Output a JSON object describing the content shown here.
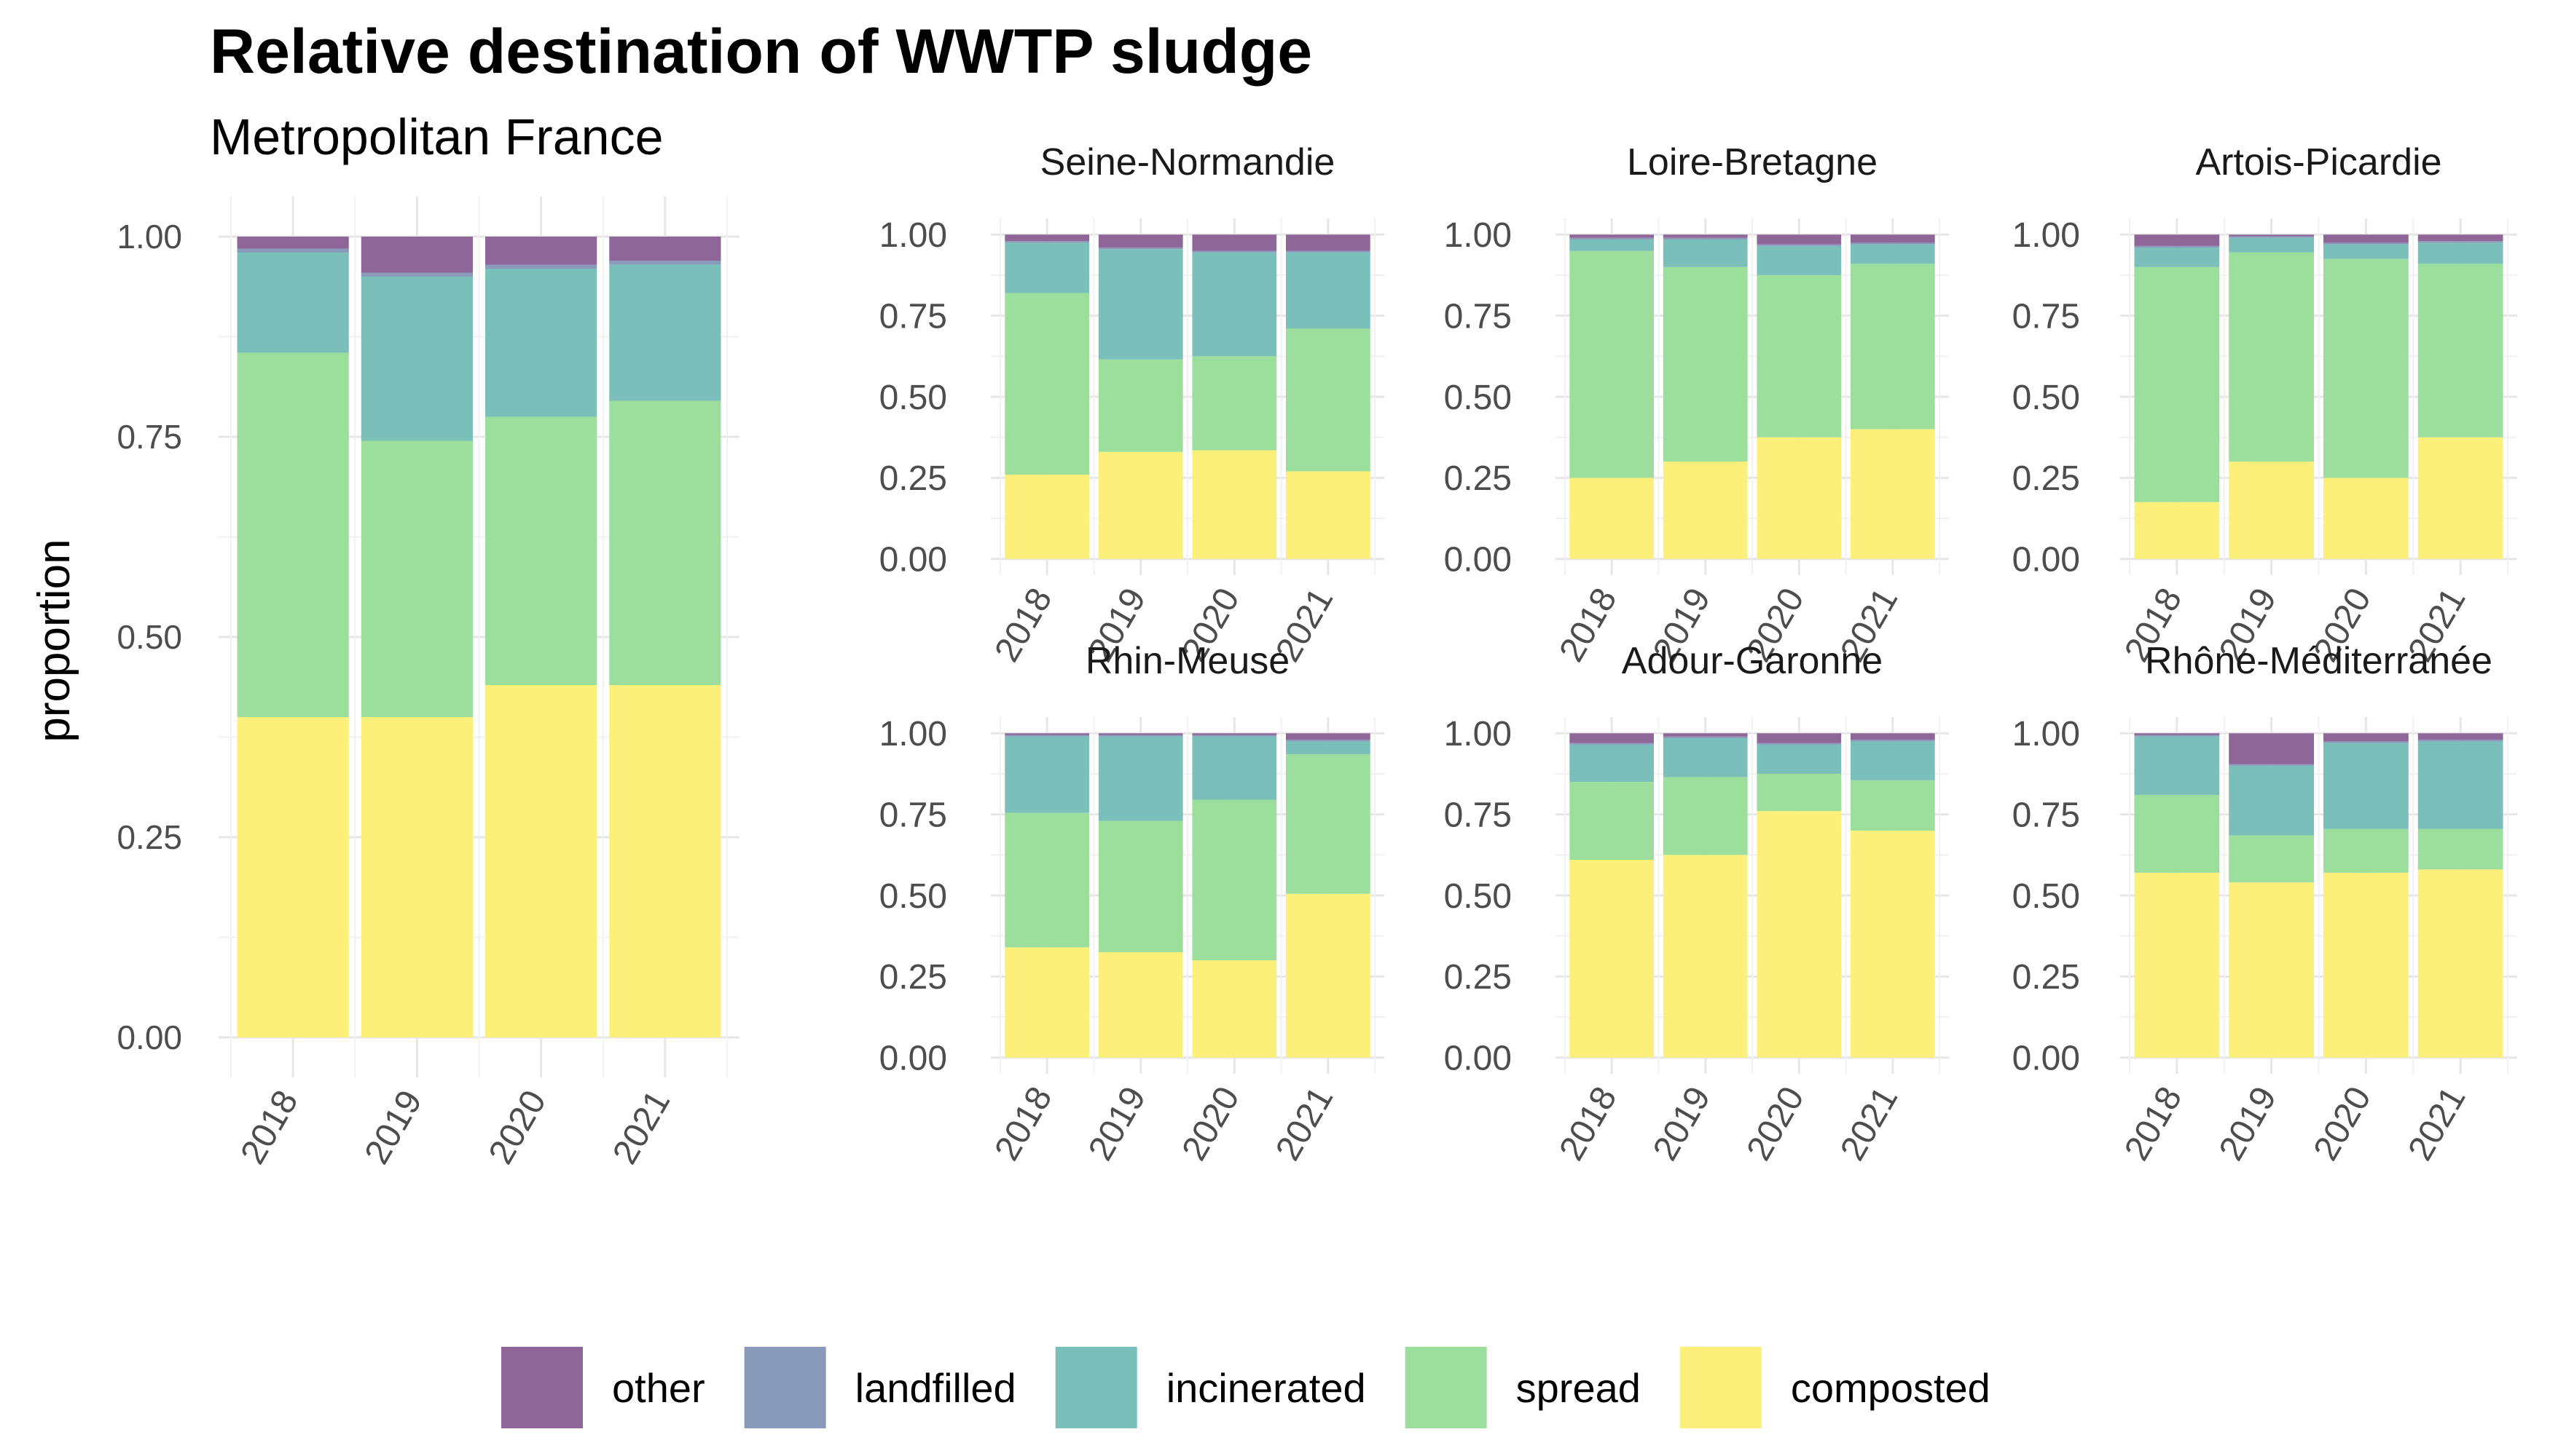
{
  "title": "Relative destination of WWTP sludge",
  "subtitle": "Metropolitan France",
  "ylabel": "proportion",
  "colors": {
    "other": "#8f6698",
    "landfilled": "#8a9abb",
    "incinerated": "#7bbfba",
    "spread": "#9cde9c",
    "composted": "#fdf07a"
  },
  "chart_data": [
    {
      "type": "bar",
      "stacked": true,
      "panel": "main",
      "title": "",
      "categories": [
        "2018",
        "2019",
        "2020",
        "2021"
      ],
      "ylim": [
        0,
        1
      ],
      "yticks": [
        "0.00",
        "0.25",
        "0.50",
        "0.75",
        "1.00"
      ],
      "series": [
        {
          "name": "composted",
          "values": [
            0.4,
            0.4,
            0.44,
            0.44
          ]
        },
        {
          "name": "spread",
          "values": [
            0.455,
            0.345,
            0.335,
            0.355
          ]
        },
        {
          "name": "incinerated",
          "values": [
            0.125,
            0.205,
            0.185,
            0.17
          ]
        },
        {
          "name": "landfilled",
          "values": [
            0.005,
            0.005,
            0.005,
            0.005
          ]
        },
        {
          "name": "other",
          "values": [
            0.015,
            0.045,
            0.035,
            0.03
          ]
        }
      ]
    },
    {
      "type": "bar",
      "stacked": true,
      "panel": "facet",
      "title": "Seine-Normandie",
      "categories": [
        "2018",
        "2019",
        "2020",
        "2021"
      ],
      "ylim": [
        0,
        1
      ],
      "yticks": [
        "0.00",
        "0.25",
        "0.50",
        "0.75",
        "1.00"
      ],
      "series": [
        {
          "name": "composted",
          "values": [
            0.26,
            0.33,
            0.335,
            0.27
          ]
        },
        {
          "name": "spread",
          "values": [
            0.56,
            0.285,
            0.29,
            0.44
          ]
        },
        {
          "name": "incinerated",
          "values": [
            0.155,
            0.34,
            0.32,
            0.235
          ]
        },
        {
          "name": "landfilled",
          "values": [
            0.005,
            0.005,
            0.005,
            0.005
          ]
        },
        {
          "name": "other",
          "values": [
            0.02,
            0.04,
            0.05,
            0.05
          ]
        }
      ]
    },
    {
      "type": "bar",
      "stacked": true,
      "panel": "facet",
      "title": "Loire-Bretagne",
      "categories": [
        "2018",
        "2019",
        "2020",
        "2021"
      ],
      "ylim": [
        0,
        1
      ],
      "yticks": [
        "0.00",
        "0.25",
        "0.50",
        "0.75",
        "1.00"
      ],
      "series": [
        {
          "name": "composted",
          "values": [
            0.25,
            0.3,
            0.375,
            0.4
          ]
        },
        {
          "name": "spread",
          "values": [
            0.7,
            0.6,
            0.5,
            0.51
          ]
        },
        {
          "name": "incinerated",
          "values": [
            0.035,
            0.085,
            0.09,
            0.06
          ]
        },
        {
          "name": "landfilled",
          "values": [
            0.005,
            0.005,
            0.005,
            0.005
          ]
        },
        {
          "name": "other",
          "values": [
            0.01,
            0.01,
            0.03,
            0.025
          ]
        }
      ]
    },
    {
      "type": "bar",
      "stacked": true,
      "panel": "facet",
      "title": "Artois-Picardie",
      "categories": [
        "2018",
        "2019",
        "2020",
        "2021"
      ],
      "ylim": [
        0,
        1
      ],
      "yticks": [
        "0.00",
        "0.25",
        "0.50",
        "0.75",
        "1.00"
      ],
      "series": [
        {
          "name": "composted",
          "values": [
            0.175,
            0.3,
            0.25,
            0.375
          ]
        },
        {
          "name": "spread",
          "values": [
            0.725,
            0.645,
            0.675,
            0.535
          ]
        },
        {
          "name": "incinerated",
          "values": [
            0.06,
            0.045,
            0.045,
            0.065
          ]
        },
        {
          "name": "landfilled",
          "values": [
            0.005,
            0.005,
            0.005,
            0.005
          ]
        },
        {
          "name": "other",
          "values": [
            0.035,
            0.005,
            0.025,
            0.02
          ]
        }
      ]
    },
    {
      "type": "bar",
      "stacked": true,
      "panel": "facet",
      "title": "Rhin-Meuse",
      "categories": [
        "2018",
        "2019",
        "2020",
        "2021"
      ],
      "ylim": [
        0,
        1
      ],
      "yticks": [
        "0.00",
        "0.25",
        "0.50",
        "0.75",
        "1.00"
      ],
      "series": [
        {
          "name": "composted",
          "values": [
            0.34,
            0.325,
            0.3,
            0.505
          ]
        },
        {
          "name": "spread",
          "values": [
            0.415,
            0.405,
            0.495,
            0.43
          ]
        },
        {
          "name": "incinerated",
          "values": [
            0.235,
            0.26,
            0.195,
            0.04
          ]
        },
        {
          "name": "landfilled",
          "values": [
            0.005,
            0.005,
            0.005,
            0.005
          ]
        },
        {
          "name": "other",
          "values": [
            0.005,
            0.005,
            0.005,
            0.02
          ]
        }
      ]
    },
    {
      "type": "bar",
      "stacked": true,
      "panel": "facet",
      "title": "Adour-Garonne",
      "categories": [
        "2018",
        "2019",
        "2020",
        "2021"
      ],
      "ylim": [
        0,
        1
      ],
      "yticks": [
        "0.00",
        "0.25",
        "0.50",
        "0.75",
        "1.00"
      ],
      "series": [
        {
          "name": "composted",
          "values": [
            0.61,
            0.625,
            0.76,
            0.7
          ]
        },
        {
          "name": "spread",
          "values": [
            0.24,
            0.24,
            0.115,
            0.155
          ]
        },
        {
          "name": "incinerated",
          "values": [
            0.115,
            0.12,
            0.09,
            0.12
          ]
        },
        {
          "name": "landfilled",
          "values": [
            0.005,
            0.005,
            0.005,
            0.005
          ]
        },
        {
          "name": "other",
          "values": [
            0.03,
            0.01,
            0.03,
            0.02
          ]
        }
      ]
    },
    {
      "type": "bar",
      "stacked": true,
      "panel": "facet",
      "title": "Rhône-Méditerranée",
      "categories": [
        "2018",
        "2019",
        "2020",
        "2021"
      ],
      "ylim": [
        0,
        1
      ],
      "yticks": [
        "0.00",
        "0.25",
        "0.50",
        "0.75",
        "1.00"
      ],
      "series": [
        {
          "name": "composted",
          "values": [
            0.57,
            0.54,
            0.57,
            0.58
          ]
        },
        {
          "name": "spread",
          "values": [
            0.24,
            0.145,
            0.135,
            0.125
          ]
        },
        {
          "name": "incinerated",
          "values": [
            0.18,
            0.215,
            0.265,
            0.27
          ]
        },
        {
          "name": "landfilled",
          "values": [
            0.005,
            0.005,
            0.005,
            0.005
          ]
        },
        {
          "name": "other",
          "values": [
            0.005,
            0.095,
            0.025,
            0.02
          ]
        }
      ]
    }
  ],
  "legend": {
    "position": "bottom",
    "items": [
      "other",
      "landfilled",
      "incinerated",
      "spread",
      "composted"
    ]
  }
}
